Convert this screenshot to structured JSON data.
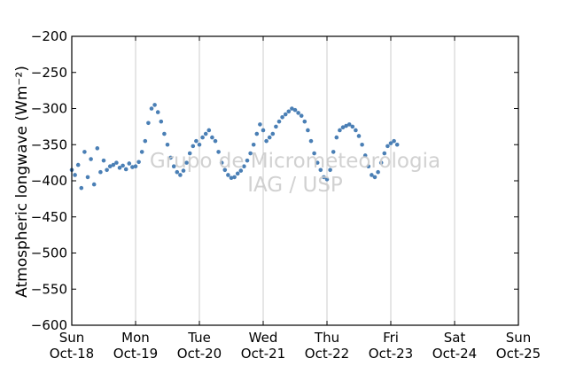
{
  "chart_data": {
    "type": "scatter",
    "ylabel": "Atmospheric longwave",
    "ylabel_units": "(Wm⁻²)",
    "ylim": [
      -600,
      -200
    ],
    "yticks": [
      -600,
      -550,
      -500,
      -450,
      -400,
      -350,
      -300,
      -250,
      -200
    ],
    "ytick_labels": [
      "−600",
      "−550",
      "−500",
      "−450",
      "−400",
      "−350",
      "−300",
      "−250",
      "−200"
    ],
    "xlim": [
      "Oct-18",
      "Oct-25"
    ],
    "xticks": [
      {
        "day": "Sun",
        "date": "Oct-18"
      },
      {
        "day": "Mon",
        "date": "Oct-19"
      },
      {
        "day": "Tue",
        "date": "Oct-20"
      },
      {
        "day": "Wed",
        "date": "Oct-21"
      },
      {
        "day": "Thu",
        "date": "Oct-22"
      },
      {
        "day": "Fri",
        "date": "Oct-23"
      },
      {
        "day": "Sat",
        "date": "Oct-24"
      },
      {
        "day": "Sun",
        "date": "Oct-25"
      }
    ],
    "grid": "vertical",
    "marker_color": "#4a7fb5",
    "watermark": [
      "Grupo de Micrometeorologia",
      "IAG / USP"
    ],
    "series": [
      {
        "points": [
          [
            0.0,
            -385
          ],
          [
            0.05,
            -392
          ],
          [
            0.1,
            -378
          ],
          [
            0.15,
            -410
          ],
          [
            0.2,
            -360
          ],
          [
            0.25,
            -395
          ],
          [
            0.3,
            -370
          ],
          [
            0.35,
            -405
          ],
          [
            0.4,
            -355
          ],
          [
            0.45,
            -388
          ],
          [
            0.5,
            -372
          ],
          [
            0.55,
            -385
          ],
          [
            0.6,
            -380
          ],
          [
            0.65,
            -378
          ],
          [
            0.7,
            -375
          ],
          [
            0.75,
            -382
          ],
          [
            0.8,
            -379
          ],
          [
            0.85,
            -384
          ],
          [
            0.9,
            -376
          ],
          [
            0.95,
            -381
          ],
          [
            1.0,
            -380
          ],
          [
            1.05,
            -374
          ],
          [
            1.1,
            -360
          ],
          [
            1.15,
            -345
          ],
          [
            1.2,
            -320
          ],
          [
            1.25,
            -300
          ],
          [
            1.3,
            -295
          ],
          [
            1.35,
            -305
          ],
          [
            1.4,
            -318
          ],
          [
            1.45,
            -335
          ],
          [
            1.5,
            -350
          ],
          [
            1.55,
            -368
          ],
          [
            1.6,
            -380
          ],
          [
            1.65,
            -388
          ],
          [
            1.7,
            -392
          ],
          [
            1.75,
            -386
          ],
          [
            1.8,
            -375
          ],
          [
            1.85,
            -362
          ],
          [
            1.9,
            -352
          ],
          [
            1.95,
            -345
          ],
          [
            2.0,
            -350
          ],
          [
            2.05,
            -340
          ],
          [
            2.1,
            -335
          ],
          [
            2.15,
            -330
          ],
          [
            2.2,
            -340
          ],
          [
            2.25,
            -345
          ],
          [
            2.3,
            -360
          ],
          [
            2.35,
            -375
          ],
          [
            2.4,
            -385
          ],
          [
            2.45,
            -392
          ],
          [
            2.5,
            -396
          ],
          [
            2.55,
            -395
          ],
          [
            2.6,
            -390
          ],
          [
            2.65,
            -386
          ],
          [
            2.7,
            -380
          ],
          [
            2.75,
            -372
          ],
          [
            2.8,
            -362
          ],
          [
            2.85,
            -350
          ],
          [
            2.9,
            -335
          ],
          [
            2.95,
            -322
          ],
          [
            3.0,
            -330
          ],
          [
            3.05,
            -345
          ],
          [
            3.1,
            -340
          ],
          [
            3.15,
            -335
          ],
          [
            3.2,
            -325
          ],
          [
            3.25,
            -318
          ],
          [
            3.3,
            -312
          ],
          [
            3.35,
            -308
          ],
          [
            3.4,
            -304
          ],
          [
            3.45,
            -300
          ],
          [
            3.5,
            -302
          ],
          [
            3.55,
            -306
          ],
          [
            3.6,
            -310
          ],
          [
            3.65,
            -318
          ],
          [
            3.7,
            -330
          ],
          [
            3.75,
            -345
          ],
          [
            3.8,
            -362
          ],
          [
            3.85,
            -375
          ],
          [
            3.9,
            -385
          ],
          [
            3.95,
            -395
          ],
          [
            4.0,
            -398
          ],
          [
            4.05,
            -385
          ],
          [
            4.1,
            -360
          ],
          [
            4.15,
            -340
          ],
          [
            4.2,
            -330
          ],
          [
            4.25,
            -326
          ],
          [
            4.3,
            -324
          ],
          [
            4.35,
            -322
          ],
          [
            4.4,
            -325
          ],
          [
            4.45,
            -330
          ],
          [
            4.5,
            -338
          ],
          [
            4.55,
            -350
          ],
          [
            4.6,
            -365
          ],
          [
            4.65,
            -380
          ],
          [
            4.7,
            -392
          ],
          [
            4.75,
            -395
          ],
          [
            4.8,
            -388
          ],
          [
            4.85,
            -375
          ],
          [
            4.9,
            -362
          ],
          [
            4.95,
            -352
          ],
          [
            5.0,
            -348
          ],
          [
            5.05,
            -345
          ],
          [
            5.1,
            -350
          ]
        ]
      }
    ]
  }
}
